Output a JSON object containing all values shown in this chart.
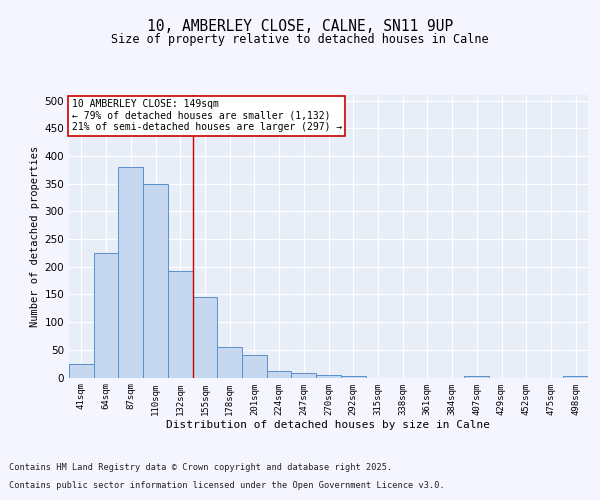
{
  "title_line1": "10, AMBERLEY CLOSE, CALNE, SN11 9UP",
  "title_line2": "Size of property relative to detached houses in Calne",
  "xlabel": "Distribution of detached houses by size in Calne",
  "ylabel": "Number of detached properties",
  "categories": [
    "41sqm",
    "64sqm",
    "87sqm",
    "110sqm",
    "132sqm",
    "155sqm",
    "178sqm",
    "201sqm",
    "224sqm",
    "247sqm",
    "270sqm",
    "292sqm",
    "315sqm",
    "338sqm",
    "361sqm",
    "384sqm",
    "407sqm",
    "429sqm",
    "452sqm",
    "475sqm",
    "498sqm"
  ],
  "values": [
    25,
    225,
    380,
    350,
    192,
    145,
    55,
    40,
    11,
    8,
    5,
    2,
    0,
    0,
    0,
    0,
    3,
    0,
    0,
    0,
    3
  ],
  "bar_color": "#c5d8f0",
  "bar_edge_color": "#5b8fc9",
  "background_color": "#e8eef8",
  "grid_color": "#ffffff",
  "red_line_x": 4.5,
  "annotation_text": "10 AMBERLEY CLOSE: 149sqm\n← 79% of detached houses are smaller (1,132)\n21% of semi-detached houses are larger (297) →",
  "annotation_box_facecolor": "#ffffff",
  "annotation_box_edgecolor": "#cc0000",
  "ylim": [
    0,
    510
  ],
  "yticks": [
    0,
    50,
    100,
    150,
    200,
    250,
    300,
    350,
    400,
    450,
    500
  ],
  "footer_line1": "Contains HM Land Registry data © Crown copyright and database right 2025.",
  "footer_line2": "Contains public sector information licensed under the Open Government Licence v3.0.",
  "fig_bg": "#f5f5ff"
}
